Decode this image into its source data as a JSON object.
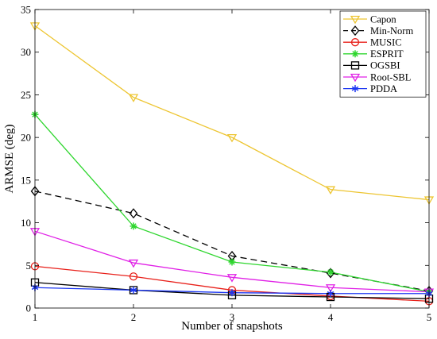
{
  "chart_data": {
    "type": "line",
    "title": "",
    "xlabel": "Number of snapshots",
    "ylabel": "ARMSE (deg)",
    "x": [
      1,
      2,
      3,
      4,
      5
    ],
    "xlim": [
      1,
      5
    ],
    "ylim": [
      0,
      35
    ],
    "xticks": [
      "1",
      "2",
      "3",
      "4",
      "5"
    ],
    "yticks": [
      "0",
      "5",
      "10",
      "15",
      "20",
      "25",
      "30",
      "35"
    ],
    "grid": false,
    "legend_position": "top-right",
    "series": [
      {
        "name": "Capon",
        "values": [
          33.1,
          24.7,
          20.0,
          13.9,
          12.7
        ],
        "color": "#EDC531",
        "dash": "solid",
        "marker": "triangle-down"
      },
      {
        "name": "Min-Norm",
        "values": [
          13.7,
          11.1,
          6.1,
          4.1,
          2.0
        ],
        "color": "#000000",
        "dash": "dashed",
        "marker": "diamond"
      },
      {
        "name": "MUSIC",
        "values": [
          4.9,
          3.7,
          2.1,
          1.4,
          0.8
        ],
        "color": "#E8201A",
        "dash": "solid",
        "marker": "circle"
      },
      {
        "name": "ESPRIT",
        "values": [
          22.7,
          9.6,
          5.4,
          4.2,
          1.9
        ],
        "color": "#2ED62E",
        "dash": "solid",
        "marker": "star"
      },
      {
        "name": "OGSBI",
        "values": [
          3.0,
          2.1,
          1.5,
          1.3,
          1.1
        ],
        "color": "#000000",
        "dash": "solid",
        "marker": "square"
      },
      {
        "name": "Root-SBL",
        "values": [
          9.0,
          5.3,
          3.6,
          2.4,
          1.9
        ],
        "color": "#E020E6",
        "dash": "solid",
        "marker": "triangle-down"
      },
      {
        "name": "PDDA",
        "values": [
          2.4,
          2.1,
          1.8,
          1.7,
          1.7
        ],
        "color": "#1B36F2",
        "dash": "solid",
        "marker": "asterisk"
      }
    ]
  }
}
